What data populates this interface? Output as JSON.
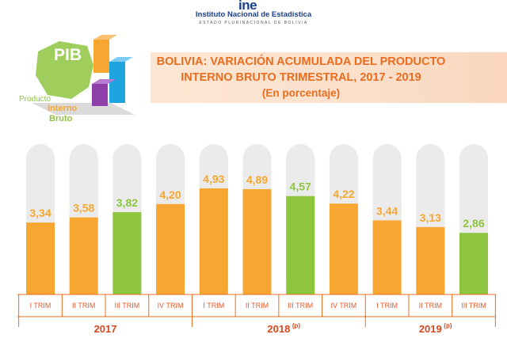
{
  "header": {
    "logo_text": "ine",
    "org_name": "Instituto Nacional de Estadística",
    "org_sub": "ESTADO PLURINACIONAL DE BOLIVIA"
  },
  "logo": {
    "acronym": "PIB",
    "line1": "Producto",
    "line2": "Interno",
    "line3": "Bruto"
  },
  "title": {
    "line1": "BOLIVIA: VARIACIÓN ACUMULADA DEL PRODUCTO",
    "line2": "INTERNO BRUTO TRIMESTRAL, 2017 - 2019",
    "line3": "(En porcentaje)"
  },
  "colors": {
    "orange": "#f7a731",
    "green": "#8ec53f",
    "track": "#ebebeb",
    "accent": "#ea6c1f",
    "tick_text": "#e8592a"
  },
  "chart_data": {
    "type": "bar",
    "title": "BOLIVIA: VARIACIÓN ACUMULADA DEL PRODUCTO INTERNO BRUTO TRIMESTRAL, 2017 - 2019",
    "subtitle": "(En porcentaje)",
    "categories": [
      "I TRIM",
      "II TRIM",
      "III TRIM",
      "IV TRIM",
      "I TRIM",
      "II TRIM",
      "III TRIM",
      "IV TRIM",
      "I TRIM",
      "II TRIM",
      "III TRIM"
    ],
    "value_labels": [
      "3,34",
      "3,58",
      "3,82",
      "4,20",
      "4,93",
      "4,89",
      "4,57",
      "4,22",
      "3,44",
      "3,13",
      "2,86"
    ],
    "values": [
      3.34,
      3.58,
      3.82,
      4.2,
      4.93,
      4.89,
      4.57,
      4.22,
      3.44,
      3.13,
      2.86
    ],
    "bar_colors": [
      "orange",
      "orange",
      "green",
      "orange",
      "orange",
      "orange",
      "green",
      "orange",
      "orange",
      "orange",
      "green"
    ],
    "groups": [
      {
        "label": "2017",
        "note": "",
        "count": 4
      },
      {
        "label": "2018",
        "note": "(p)",
        "count": 4
      },
      {
        "label": "2019",
        "note": "(p)",
        "count": 3
      }
    ],
    "ylim": [
      0,
      6
    ],
    "grid": false,
    "legend": "none",
    "xlabel": "",
    "ylabel": ""
  }
}
